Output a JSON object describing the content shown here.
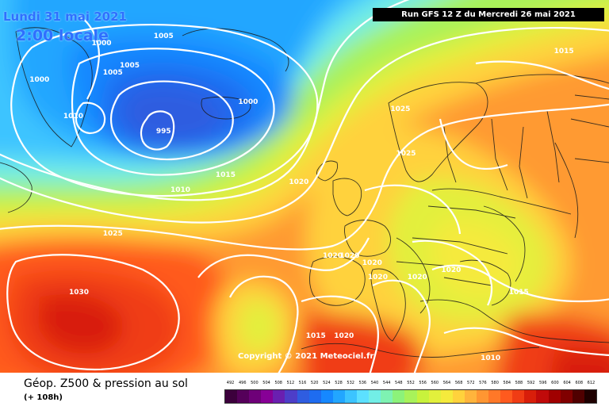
{
  "header": {
    "date": "Lundi 31 mai 2021",
    "time": "2:00 locale",
    "run": "Run GFS 12 Z du Mercredi 26 mai 2021"
  },
  "copyright": "Copyright © 2021 Meteociel.fr",
  "footer": {
    "title": "Géop. Z500 & pression au sol",
    "forecast_hour": "(+ 108h)"
  },
  "isobar_labels": [
    {
      "value": "1000",
      "lon": -44,
      "lat": 72
    },
    {
      "value": "1005",
      "lon": -33,
      "lat": 73
    },
    {
      "value": "1000",
      "lon": -55,
      "lat": 67
    },
    {
      "value": "1005",
      "lon": -42,
      "lat": 68
    },
    {
      "value": "1005",
      "lon": -39,
      "lat": 69
    },
    {
      "value": "1010",
      "lon": -49,
      "lat": 62
    },
    {
      "value": "1000",
      "lon": -18,
      "lat": 64
    },
    {
      "value": "995",
      "lon": -33,
      "lat": 60
    },
    {
      "value": "1015",
      "lon": -22,
      "lat": 54
    },
    {
      "value": "1010",
      "lon": -30,
      "lat": 52
    },
    {
      "value": "1025",
      "lon": -42,
      "lat": 46
    },
    {
      "value": "1030",
      "lon": -48,
      "lat": 38
    },
    {
      "value": "1020",
      "lon": -9,
      "lat": 53
    },
    {
      "value": "1025",
      "lon": 9,
      "lat": 63
    },
    {
      "value": "1025",
      "lon": 10,
      "lat": 57
    },
    {
      "value": "1015",
      "lon": 38,
      "lat": 71
    },
    {
      "value": "1020",
      "lon": -3,
      "lat": 43
    },
    {
      "value": "1020",
      "lon": 0,
      "lat": 43
    },
    {
      "value": "1020",
      "lon": 4,
      "lat": 42
    },
    {
      "value": "1020",
      "lon": 5,
      "lat": 40
    },
    {
      "value": "1020",
      "lon": 12,
      "lat": 40
    },
    {
      "value": "1020",
      "lon": 18,
      "lat": 41
    },
    {
      "value": "1015",
      "lon": 30,
      "lat": 38
    },
    {
      "value": "1015",
      "lon": -6,
      "lat": 32
    },
    {
      "value": "1020",
      "lon": -1,
      "lat": 32
    },
    {
      "value": "1010",
      "lon": 25,
      "lat": 29
    }
  ],
  "legend": {
    "values": [
      "492",
      "496",
      "500",
      "504",
      "508",
      "512",
      "516",
      "520",
      "524",
      "528",
      "532",
      "536",
      "540",
      "544",
      "548",
      "552",
      "556",
      "560",
      "564",
      "568",
      "572",
      "576",
      "580",
      "584",
      "588",
      "592",
      "596",
      "600",
      "604",
      "608",
      "612"
    ],
    "colors": [
      "#3c003c",
      "#55005a",
      "#6e0078",
      "#870096",
      "#6a1fb0",
      "#4d3ec8",
      "#2f5de0",
      "#1e6cf0",
      "#1688ff",
      "#22a6ff",
      "#3cc4ff",
      "#5ce0ff",
      "#72eee6",
      "#7ef2b2",
      "#8cf27a",
      "#a8f25a",
      "#c8f23c",
      "#e2f03c",
      "#f5ea3c",
      "#ffd23c",
      "#ffb43c",
      "#ff9632",
      "#ff7828",
      "#ff5a1e",
      "#f03c14",
      "#d81e0a",
      "#c00a0a",
      "#a00000",
      "#800000",
      "#500000",
      "#1e0000"
    ]
  }
}
